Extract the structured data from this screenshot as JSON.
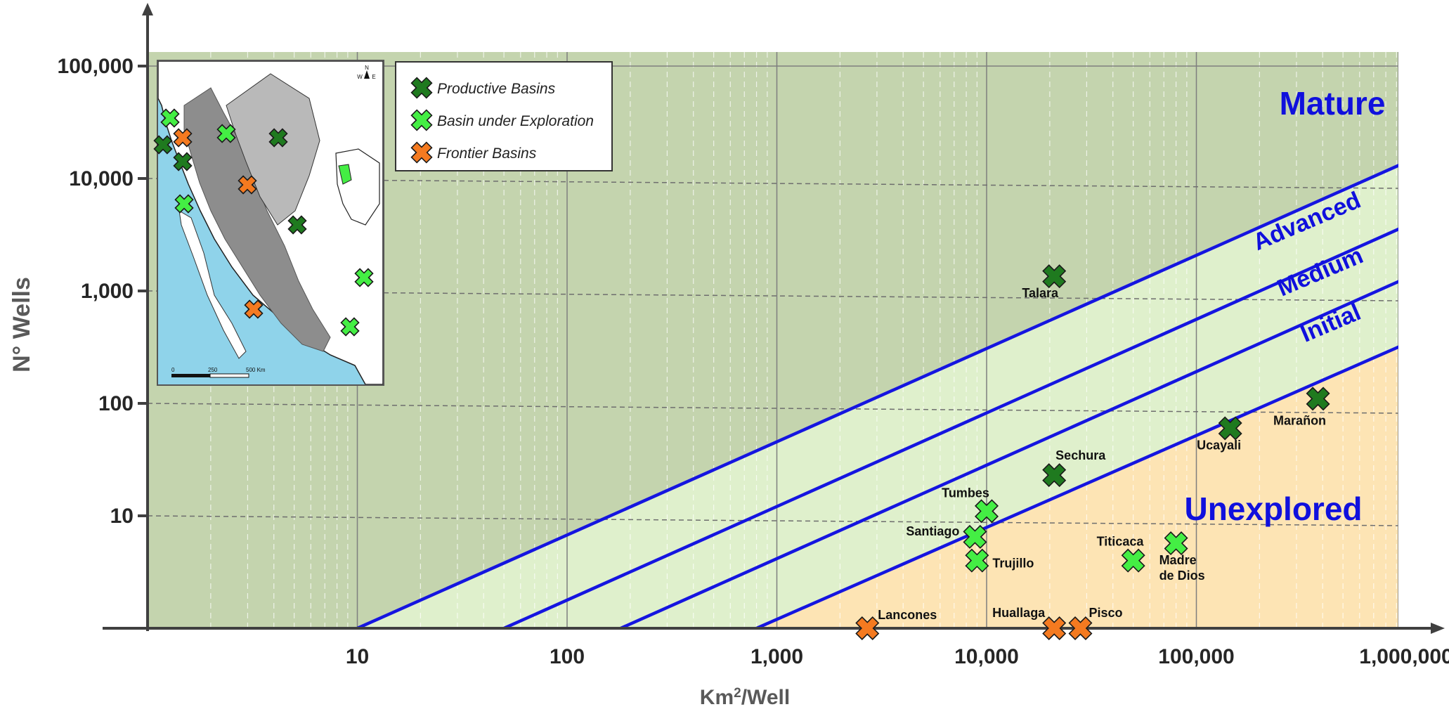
{
  "chart_data": {
    "type": "scatter",
    "x_scale": "log",
    "y_scale": "log",
    "xlabel": "Km²/Well",
    "ylabel": "N° Wells",
    "x_ticks": [
      "10",
      "100",
      "1,000",
      "10,000",
      "100,000",
      "1,000,000"
    ],
    "y_ticks": [
      "10",
      "100",
      "1,000",
      "10,000",
      "100,000"
    ],
    "x_tick_values": [
      10,
      100,
      1000,
      10000,
      100000,
      1000000
    ],
    "y_tick_values": [
      10,
      100,
      1000,
      10000,
      100000
    ],
    "xlim": [
      1,
      1000000
    ],
    "ylim": [
      1,
      100000
    ],
    "zones": [
      {
        "label": "Mature",
        "fill": "#c4d4ae"
      },
      {
        "label": "Advanced",
        "fill": "#dff0cc"
      },
      {
        "label": "Medium",
        "fill": "#dff0cc"
      },
      {
        "label": "Initial",
        "fill": "#dff0cc"
      },
      {
        "label": "Unexplored",
        "fill": "#fde4b4"
      }
    ],
    "boundary_lines": [
      {
        "x_start": 10,
        "x_end": 1000000,
        "y_end": 14000
      },
      {
        "x_start": 50,
        "x_end": 1000000,
        "y_end": 3800
      },
      {
        "x_start": 180,
        "x_end": 1000000,
        "y_end": 1300
      },
      {
        "x_start": 800,
        "x_end": 1000000,
        "y_end": 340
      }
    ],
    "legend": [
      {
        "label": "Productive Basins",
        "color": "#1f7a1f"
      },
      {
        "label": "Basin under Exploration",
        "color": "#44ee44"
      },
      {
        "label": "Frontier Basins",
        "color": "#f47a20"
      }
    ],
    "series": [
      {
        "name": "Productive Basins",
        "points": [
          {
            "label": "Talara",
            "x": 21000,
            "y": 1350
          },
          {
            "label": "Sechura",
            "x": 21000,
            "y": 23
          },
          {
            "label": "Ucayali",
            "x": 145000,
            "y": 60
          },
          {
            "label": "Marañon",
            "x": 380000,
            "y": 110
          }
        ]
      },
      {
        "name": "Basin under Exploration",
        "points": [
          {
            "label": "Tumbes",
            "x": 10000,
            "y": 11
          },
          {
            "label": "Santiago",
            "x": 8800,
            "y": 6.5
          },
          {
            "label": "Trujillo",
            "x": 9000,
            "y": 4
          },
          {
            "label": "Titicaca",
            "x": 50000,
            "y": 4
          },
          {
            "label": "Madre de Dios",
            "x": 80000,
            "y": 5.7
          }
        ]
      },
      {
        "name": "Frontier Basins",
        "points": [
          {
            "label": "Lancones",
            "x": 2700,
            "y": 1
          },
          {
            "label": "Huallaga",
            "x": 21000,
            "y": 1
          },
          {
            "label": "Pisco",
            "x": 28000,
            "y": 1
          }
        ]
      }
    ]
  },
  "inset_map": {
    "scale_bar_labels": [
      "0",
      "250",
      "500 Km"
    ],
    "compass_letters": [
      "N",
      "W",
      "E"
    ]
  }
}
